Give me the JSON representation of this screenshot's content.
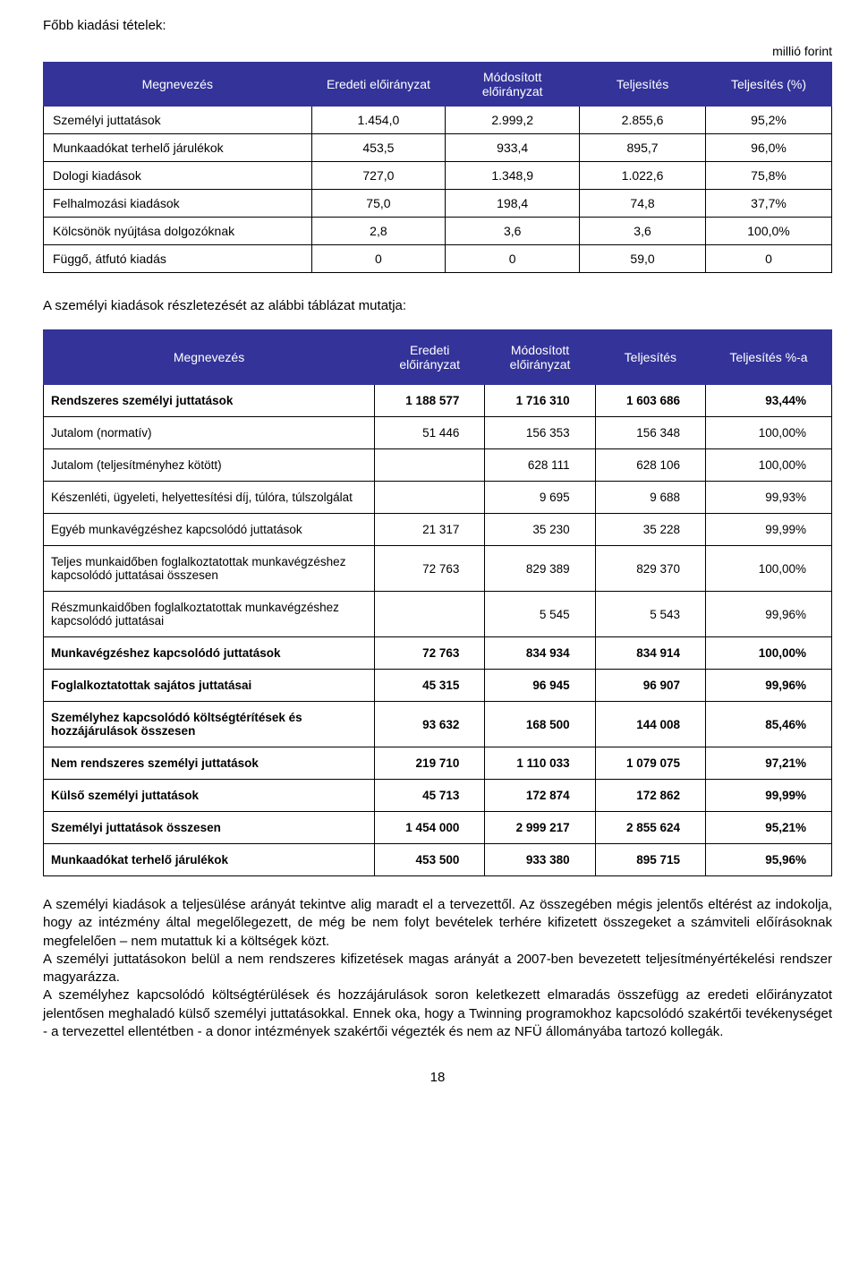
{
  "title": "Főbb kiadási tételek:",
  "unit": "millió forint",
  "table1": {
    "columns": [
      "Megnevezés",
      "Eredeti előirányzat",
      "Módosított előirányzat",
      "Teljesítés",
      "Teljesítés (%)"
    ],
    "rows": [
      [
        "Személyi juttatások",
        "1.454,0",
        "2.999,2",
        "2.855,6",
        "95,2%"
      ],
      [
        "Munkaadókat terhelő járulékok",
        "453,5",
        "933,4",
        "895,7",
        "96,0%"
      ],
      [
        "Dologi kiadások",
        "727,0",
        "1.348,9",
        "1.022,6",
        "75,8%"
      ],
      [
        "Felhalmozási kiadások",
        "75,0",
        "198,4",
        "74,8",
        "37,7%"
      ],
      [
        "Kölcsönök nyújtása dolgozóknak",
        "2,8",
        "3,6",
        "3,6",
        "100,0%"
      ],
      [
        "Függő, átfutó kiadás",
        "0",
        "0",
        "59,0",
        "0"
      ]
    ]
  },
  "intertext": "A személyi kiadások részletezését az alábbi táblázat mutatja:",
  "table2": {
    "columns": [
      "Megnevezés",
      "Eredeti előirányzat",
      "Módosított előirányzat",
      "Teljesítés",
      "Teljesítés %-a"
    ],
    "rows": [
      {
        "label": "Rendszeres személyi juttatások",
        "c": [
          "1 188 577",
          "1 716 310",
          "1 603 686",
          "93,44%"
        ],
        "bold": true
      },
      {
        "label": "Jutalom (normatív)",
        "c": [
          "51 446",
          "156 353",
          "156 348",
          "100,00%"
        ],
        "bold": false
      },
      {
        "label": "Jutalom (teljesítményhez kötött)",
        "c": [
          "",
          "628 111",
          "628 106",
          "100,00%"
        ],
        "bold": false
      },
      {
        "label": "Készenléti, ügyeleti, helyettesítési díj, túlóra, túlszolgálat",
        "c": [
          "",
          "9 695",
          "9 688",
          "99,93%"
        ],
        "bold": false
      },
      {
        "label": "Egyéb munkavégzéshez kapcsolódó juttatások",
        "c": [
          "21 317",
          "35 230",
          "35 228",
          "99,99%"
        ],
        "bold": false
      },
      {
        "label": "Teljes munkaidőben foglalkoztatottak  munkavégzéshez kapcsolódó juttatásai összesen",
        "c": [
          "72 763",
          "829 389",
          "829 370",
          "100,00%"
        ],
        "bold": false
      },
      {
        "label": "Részmunkaidőben foglalkoztatottak munkavégzéshez kapcsolódó juttatásai",
        "c": [
          "",
          "5 545",
          "5 543",
          "99,96%"
        ],
        "bold": false
      },
      {
        "label": "Munkavégzéshez kapcsolódó juttatások",
        "c": [
          "72 763",
          "834 934",
          "834 914",
          "100,00%"
        ],
        "bold": true
      },
      {
        "label": "Foglalkoztatottak sajátos juttatásai",
        "c": [
          "45 315",
          "96 945",
          "96 907",
          "99,96%"
        ],
        "bold": true
      },
      {
        "label": "Személyhez kapcsolódó költségtérítések és hozzájárulások összesen",
        "c": [
          "93 632",
          "168 500",
          "144 008",
          "85,46%"
        ],
        "bold": true
      },
      {
        "label": "Nem rendszeres személyi juttatások",
        "c": [
          "219 710",
          "1 110 033",
          "1 079 075",
          "97,21%"
        ],
        "bold": true
      },
      {
        "label": "Külső személyi juttatások",
        "c": [
          "45 713",
          "172 874",
          "172 862",
          "99,99%"
        ],
        "bold": true
      },
      {
        "label": "Személyi juttatások összesen",
        "c": [
          "1 454 000",
          "2 999 217",
          "2 855 624",
          "95,21%"
        ],
        "bold": true
      },
      {
        "label": "Munkaadókat terhelő járulékok",
        "c": [
          "453 500",
          "933 380",
          "895 715",
          "95,96%"
        ],
        "bold": true
      }
    ]
  },
  "paragraphs": [
    "A személyi kiadások a teljesülése arányát tekintve alig maradt el a tervezettől. Az összegében mégis jelentős eltérést az indokolja, hogy az intézmény által megelőlegezett, de még be nem folyt bevételek terhére kifizetett összegeket a számviteli előírásoknak megfelelően – nem mutattuk ki a költségek közt.",
    "A személyi juttatásokon belül a nem rendszeres kifizetések magas arányát a 2007-ben bevezetett teljesítményértékelési rendszer magyarázza.",
    "A személyhez kapcsolódó költségtérülések és hozzájárulások soron keletkezett elmaradás összefügg az eredeti előirányzatot jelentősen meghaladó külső személyi juttatásokkal. Ennek oka, hogy a Twinning programokhoz kapcsolódó szakértői tevékenységet - a tervezettel ellentétben - a donor intézmények szakértői végezték és nem az NFÜ állományába tartozó kollegák."
  ],
  "pagenum": "18"
}
